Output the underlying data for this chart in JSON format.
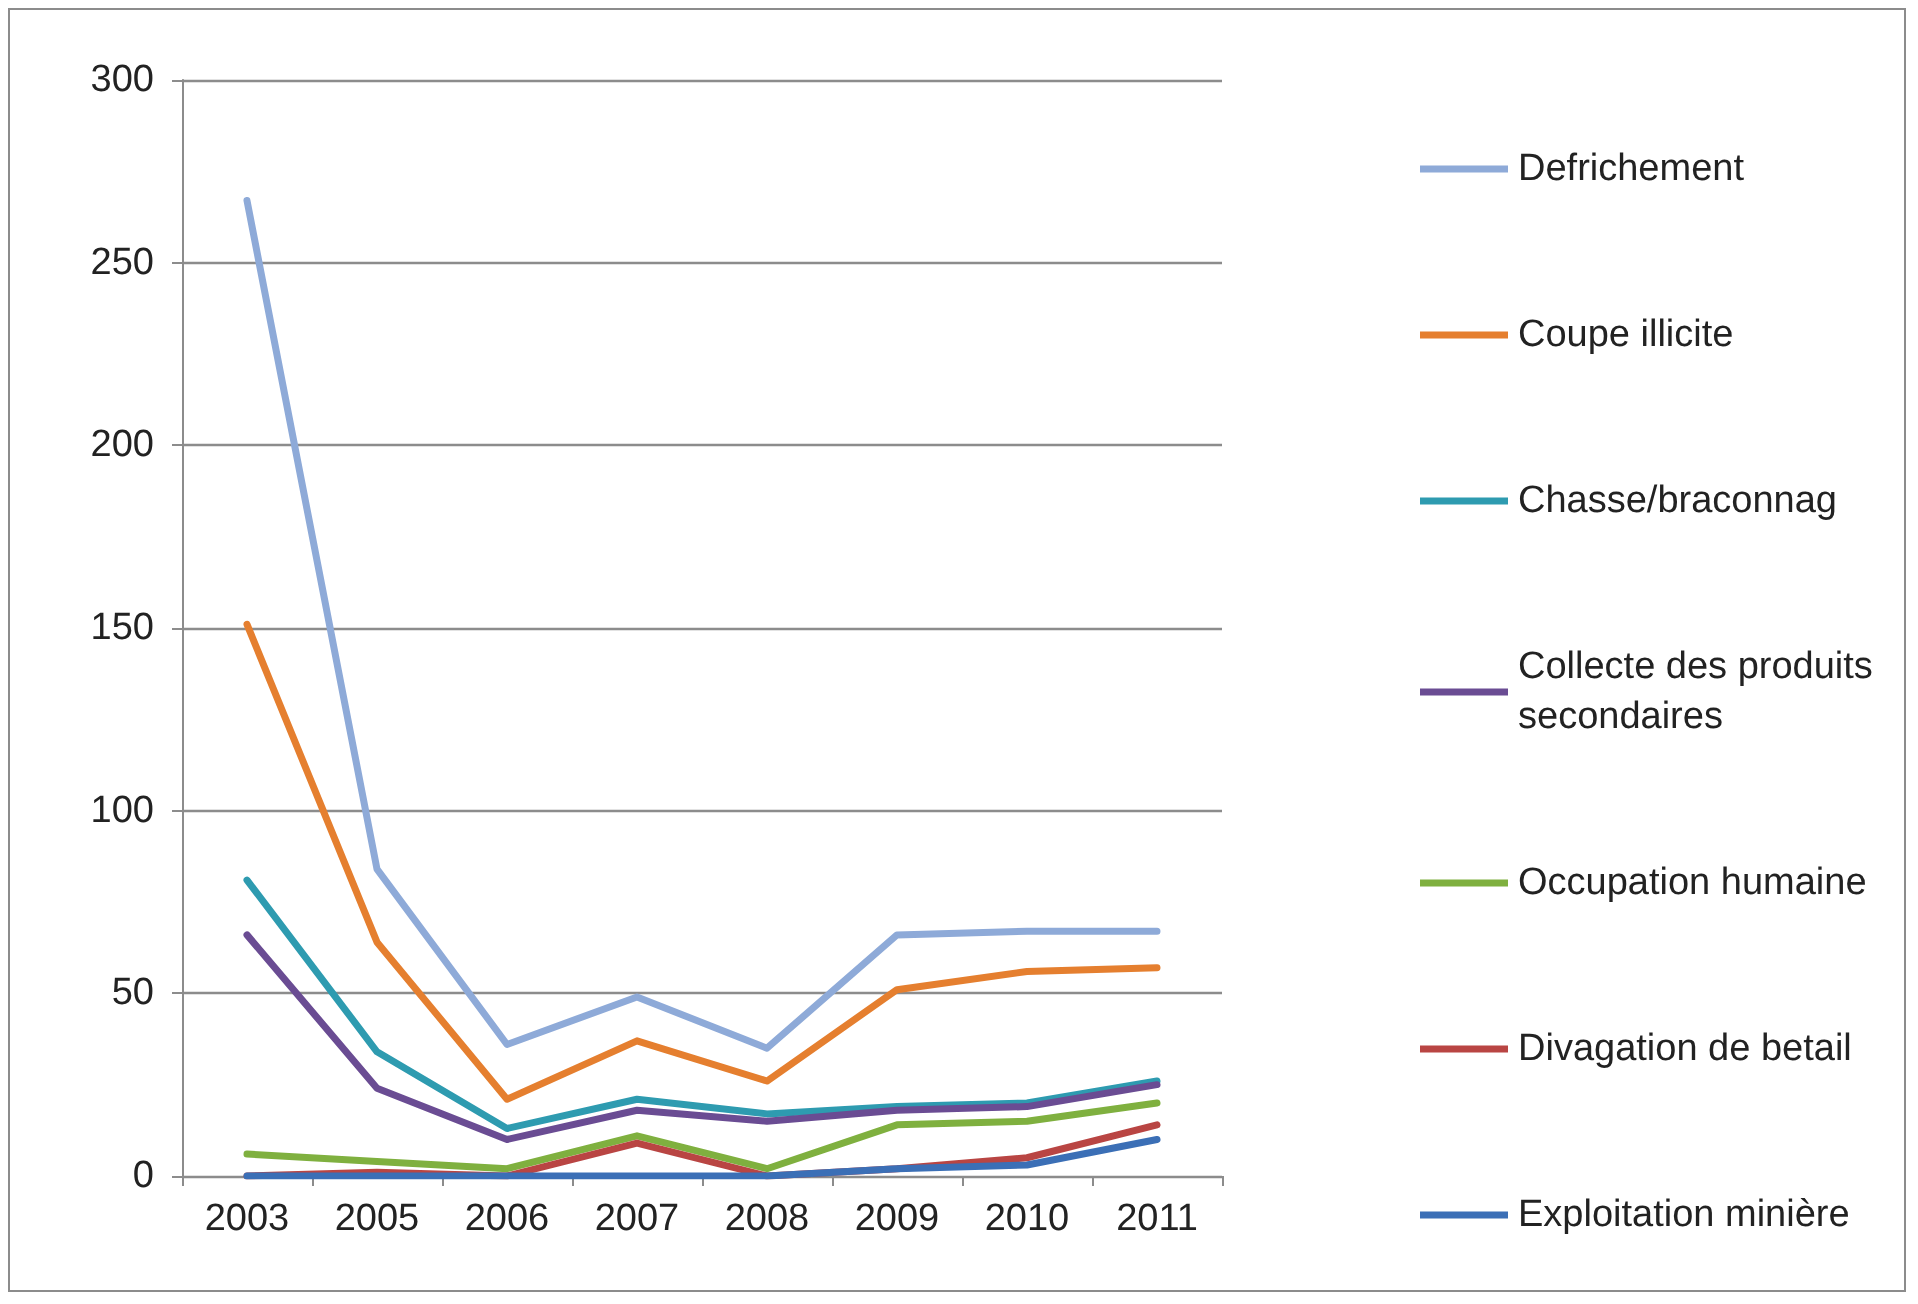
{
  "chart_data": {
    "type": "line",
    "categories": [
      "2003",
      "2005",
      "2006",
      "2007",
      "2008",
      "2009",
      "2010",
      "2011"
    ],
    "series": [
      {
        "name": "Defrichement",
        "color": "#8eaad8",
        "values": [
          267,
          84,
          36,
          49,
          35,
          66,
          67,
          67
        ]
      },
      {
        "name": "Coupe illicite",
        "color": "#e57f2f",
        "values": [
          151,
          64,
          21,
          37,
          26,
          51,
          56,
          57
        ]
      },
      {
        "name": "Chasse/braconnag",
        "color": "#2e9bb0",
        "values": [
          81,
          34,
          13,
          21,
          17,
          19,
          20,
          26
        ]
      },
      {
        "name": "Collecte des produits secondaires",
        "color": "#6a4c93",
        "values": [
          66,
          24,
          10,
          18,
          15,
          18,
          19,
          25
        ]
      },
      {
        "name": "Occupation humaine",
        "color": "#7fb03f",
        "values": [
          6,
          4,
          2,
          11,
          2,
          14,
          15,
          20
        ]
      },
      {
        "name": "Divagation de betail",
        "color": "#b94543",
        "values": [
          0,
          1,
          0,
          9,
          0,
          2,
          5,
          14
        ]
      },
      {
        "name": "Exploitation minière",
        "color": "#3b6fb6",
        "values": [
          0,
          0,
          0,
          0,
          0,
          2,
          3,
          10
        ]
      }
    ],
    "ylim": [
      0,
      300
    ],
    "yticks": [
      0,
      50,
      100,
      150,
      200,
      250,
      300
    ],
    "grid": "y",
    "legend": "right",
    "marker": "none",
    "line_style": "solid"
  }
}
